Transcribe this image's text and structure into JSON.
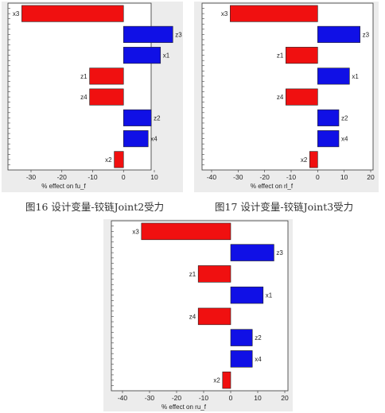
{
  "colors": {
    "positive": "#1010e6",
    "negative": "#f01010",
    "panel_bg": "#ececec"
  },
  "captions": [
    "图16 设计变量-铰链Joint2受力",
    "图17 设计变量-铰链Joint3受力"
  ],
  "chart_data": [
    {
      "type": "bar",
      "orientation": "horizontal",
      "categories": [
        "x3",
        "z3",
        "x1",
        "z1",
        "z4",
        "z2",
        "x4",
        "x2"
      ],
      "values": [
        -33,
        16,
        12,
        -11,
        -11,
        9,
        8,
        -3
      ],
      "xlabel": "% effect on fu_f",
      "xticks": [
        "-30",
        "-20",
        "-10",
        "0",
        "10"
      ],
      "xlim": [
        -36,
        20
      ]
    },
    {
      "type": "bar",
      "orientation": "horizontal",
      "categories": [
        "x3",
        "z3",
        "z1",
        "x1",
        "z4",
        "z2",
        "x4",
        "x2"
      ],
      "values": [
        -33,
        16,
        -12,
        12,
        -12,
        8,
        8,
        -3
      ],
      "xlabel": "% effect on rl_f",
      "xticks": [
        "-40",
        "-30",
        "-20",
        "-10",
        "0",
        "10",
        "20"
      ],
      "xlim": [
        -41,
        22
      ]
    },
    {
      "type": "bar",
      "orientation": "horizontal",
      "categories": [
        "x3",
        "z3",
        "z1",
        "x1",
        "z4",
        "z2",
        "x4",
        "x2"
      ],
      "values": [
        -33,
        16,
        -12,
        12,
        -12,
        8,
        8,
        -3
      ],
      "xlabel": "% effect on ru_f",
      "xticks": [
        "-40",
        "-30",
        "-20",
        "-10",
        "0",
        "10",
        "20"
      ],
      "xlim": [
        -41,
        22
      ]
    }
  ]
}
